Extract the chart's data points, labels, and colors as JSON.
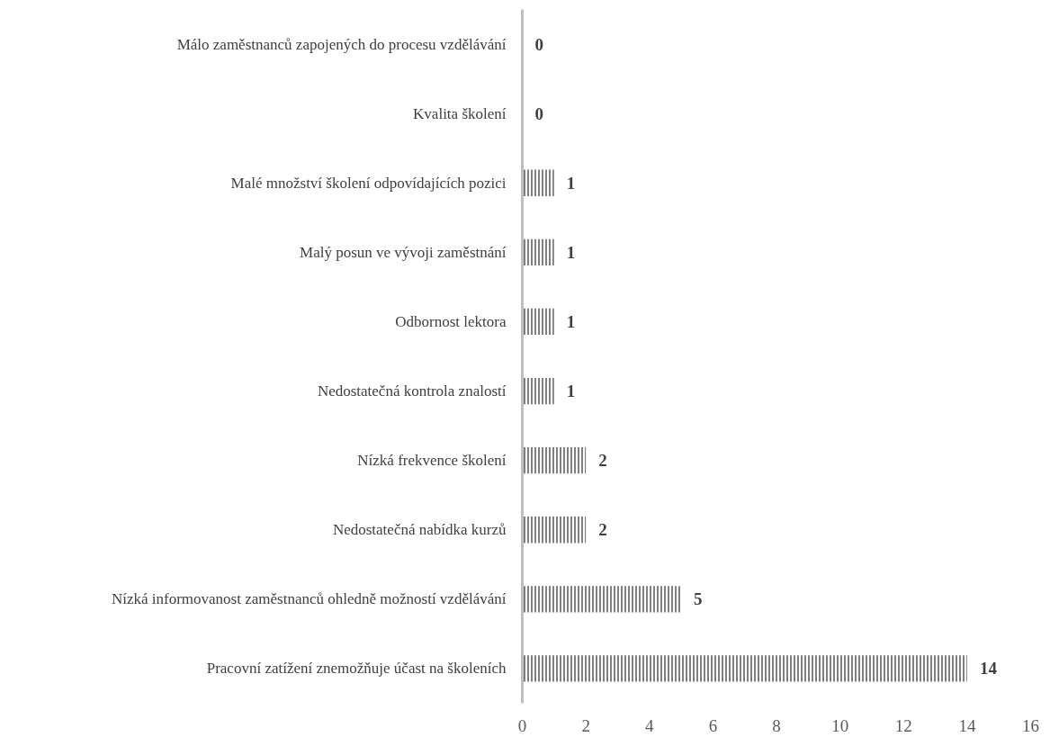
{
  "chart_data": {
    "type": "bar",
    "orientation": "horizontal",
    "categories": [
      "Málo zaměstnanců zapojených do procesu vzdělávání",
      "Kvalita školení",
      "Malé množství školení odpovídajících pozici",
      "Malý posun ve vývoji zaměstnání",
      "Odbornost lektora",
      "Nedostatečná kontrola znalostí",
      "Nízká frekvence školení",
      "Nedostatečná nabídka kurzů",
      "Nízká informovanost zaměstnanců ohledně možností vzdělávání",
      "Pracovní zatížení znemožňuje účast na školeních"
    ],
    "values": [
      0,
      0,
      1,
      1,
      1,
      1,
      2,
      2,
      5,
      14
    ],
    "color": "#7f7f7f",
    "xlim": [
      0,
      16
    ],
    "xticks": [
      0,
      2,
      4,
      6,
      8,
      10,
      12,
      14,
      16
    ],
    "data_labels": true,
    "grid": false
  }
}
